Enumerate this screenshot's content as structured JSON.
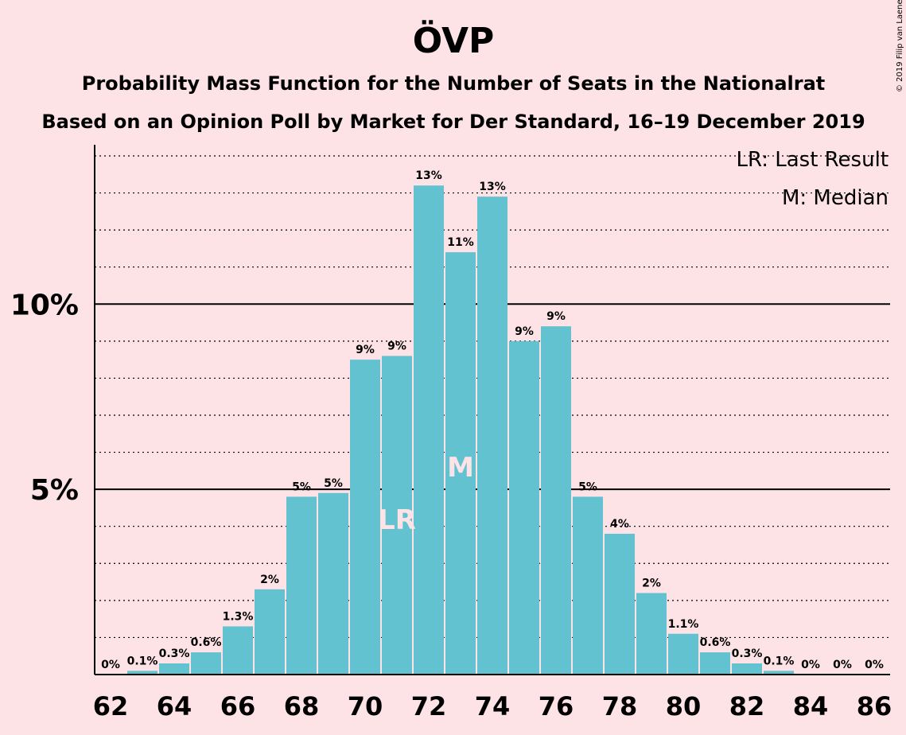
{
  "header": {
    "title": "ÖVP",
    "subtitle1": "Probability Mass Function for the Number of Seats in the Nationalrat",
    "subtitle2": "Based on an Opinion Poll by Market for Der Standard, 16–19 December 2019",
    "copyright": "© 2019 Filip van Laenen"
  },
  "legend": {
    "last_result": "LR: Last Result",
    "median": "M: Median"
  },
  "chart_data": {
    "type": "bar",
    "title": "ÖVP",
    "xlabel": "",
    "ylabel": "",
    "bar_color": "#62c2d0",
    "ylim": [
      0,
      14.3
    ],
    "xlim": [
      62,
      86
    ],
    "x_ticks": [
      "62",
      "64",
      "66",
      "68",
      "70",
      "72",
      "74",
      "76",
      "78",
      "80",
      "82",
      "84",
      "86"
    ],
    "y_ticks": [
      {
        "value": 5,
        "label": "5%"
      },
      {
        "value": 10,
        "label": "10%"
      }
    ],
    "grid": "dotted horizontal lines at every 1%",
    "categories": [
      62,
      63,
      64,
      65,
      66,
      67,
      68,
      69,
      70,
      71,
      72,
      73,
      74,
      75,
      76,
      77,
      78,
      79,
      80,
      81,
      82,
      83,
      84,
      85,
      86
    ],
    "values": [
      0,
      0.1,
      0.3,
      0.6,
      1.3,
      2.3,
      4.8,
      4.9,
      8.5,
      8.6,
      13.2,
      11.4,
      12.9,
      9.0,
      9.4,
      4.8,
      3.8,
      2.2,
      1.1,
      0.6,
      0.3,
      0.1,
      0,
      0,
      0
    ],
    "value_labels": [
      "0%",
      "0.1%",
      "0.3%",
      "0.6%",
      "1.3%",
      "2%",
      "5%",
      "5%",
      "9%",
      "9%",
      "13%",
      "11%",
      "13%",
      "9%",
      "9%",
      "5%",
      "4%",
      "2%",
      "1.1%",
      "0.6%",
      "0.3%",
      "0.1%",
      "0%",
      "0%",
      "0%"
    ],
    "annotations": [
      {
        "x": 71,
        "text": "LR"
      },
      {
        "x": 73,
        "text": "M"
      }
    ],
    "legend_position": "top-right"
  }
}
